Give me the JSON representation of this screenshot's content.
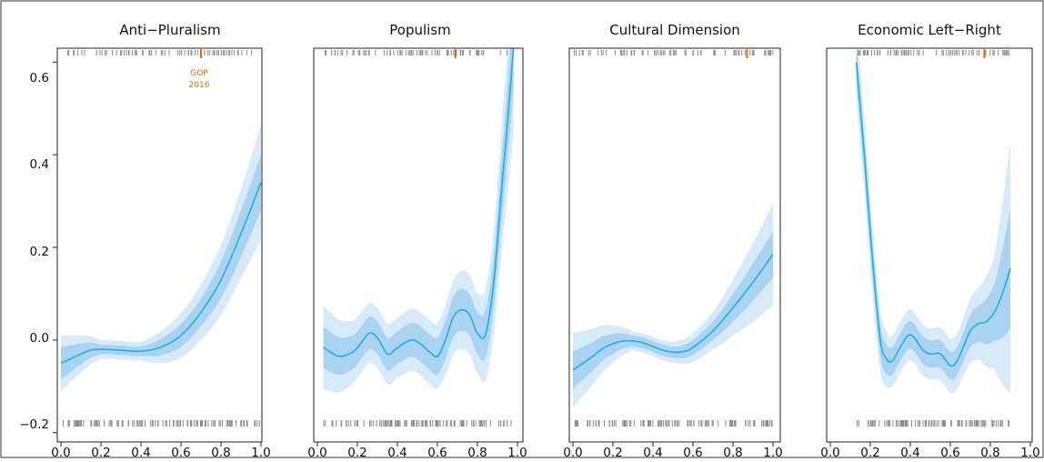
{
  "colors": {
    "line": "#1bb0de",
    "band_outer": "#d7eaf8",
    "band_inner": "#a9d3f0",
    "rug": "#8a8a8a",
    "highlight": "#e0680a",
    "frame": "#222222"
  },
  "annotation": {
    "line1": "GOP",
    "line2": "2016"
  },
  "chart_data": [
    {
      "type": "line",
      "title": "Anti−Pluralism",
      "xlim": [
        0.0,
        1.0
      ],
      "ylim": [
        -0.22,
        0.63
      ],
      "x_ticks": [
        "0.0",
        "0.2",
        "0.4",
        "0.6",
        "0.8",
        "1.0"
      ],
      "y_ticks": [
        "−0.2",
        "0.0",
        "0.2",
        "0.4",
        "0.6"
      ],
      "highlight_x": 0.7,
      "annotation": true,
      "series": [
        {
          "values": [
            [
              0.0,
              -0.05
            ],
            [
              0.05,
              -0.04
            ],
            [
              0.1,
              -0.03
            ],
            [
              0.15,
              -0.022
            ],
            [
              0.2,
              -0.02
            ],
            [
              0.3,
              -0.022
            ],
            [
              0.4,
              -0.024
            ],
            [
              0.5,
              -0.015
            ],
            [
              0.6,
              0.01
            ],
            [
              0.7,
              0.06
            ],
            [
              0.8,
              0.13
            ],
            [
              0.9,
              0.23
            ],
            [
              1.0,
              0.34
            ]
          ]
        }
      ],
      "band_inner": [
        [
          0.0,
          0.035
        ],
        [
          0.2,
          0.01
        ],
        [
          0.4,
          0.01
        ],
        [
          0.5,
          0.018
        ],
        [
          0.6,
          0.025
        ],
        [
          0.7,
          0.03
        ],
        [
          0.8,
          0.04
        ],
        [
          0.9,
          0.05
        ],
        [
          1.0,
          0.06
        ]
      ],
      "band_outer": [
        [
          0.0,
          0.06
        ],
        [
          0.2,
          0.02
        ],
        [
          0.4,
          0.02
        ],
        [
          0.5,
          0.035
        ],
        [
          0.6,
          0.048
        ],
        [
          0.7,
          0.06
        ],
        [
          0.8,
          0.075
        ],
        [
          0.9,
          0.095
        ],
        [
          1.0,
          0.125
        ]
      ]
    },
    {
      "type": "line",
      "title": "Populism",
      "xlim": [
        0.0,
        1.0
      ],
      "ylim": [
        -0.22,
        0.63
      ],
      "x_ticks": [
        "0.0",
        "0.2",
        "0.4",
        "0.6",
        "0.8",
        "1.0"
      ],
      "highlight_x": 0.69,
      "series": [
        {
          "values": [
            [
              0.03,
              -0.015
            ],
            [
              0.08,
              -0.03
            ],
            [
              0.12,
              -0.035
            ],
            [
              0.18,
              -0.025
            ],
            [
              0.22,
              -0.005
            ],
            [
              0.26,
              0.015
            ],
            [
              0.3,
              0.005
            ],
            [
              0.35,
              -0.03
            ],
            [
              0.39,
              -0.02
            ],
            [
              0.44,
              -0.005
            ],
            [
              0.48,
              0.0
            ],
            [
              0.52,
              -0.01
            ],
            [
              0.56,
              -0.025
            ],
            [
              0.6,
              -0.035
            ],
            [
              0.64,
              0.0
            ],
            [
              0.68,
              0.05
            ],
            [
              0.72,
              0.065
            ],
            [
              0.76,
              0.055
            ],
            [
              0.8,
              0.015
            ],
            [
              0.84,
              0.012
            ],
            [
              0.88,
              0.12
            ],
            [
              0.92,
              0.32
            ],
            [
              0.96,
              0.52
            ],
            [
              0.98,
              0.63
            ]
          ]
        }
      ],
      "band_inner": [
        [
          0.03,
          0.045
        ],
        [
          0.2,
          0.035
        ],
        [
          0.4,
          0.035
        ],
        [
          0.6,
          0.04
        ],
        [
          0.72,
          0.045
        ],
        [
          0.8,
          0.045
        ],
        [
          0.9,
          0.06
        ],
        [
          0.98,
          0.09
        ]
      ],
      "band_outer": [
        [
          0.03,
          0.09
        ],
        [
          0.2,
          0.065
        ],
        [
          0.4,
          0.065
        ],
        [
          0.6,
          0.07
        ],
        [
          0.72,
          0.085
        ],
        [
          0.8,
          0.085
        ],
        [
          0.9,
          0.12
        ],
        [
          0.98,
          0.18
        ]
      ]
    },
    {
      "type": "line",
      "title": "Cultural Dimension",
      "xlim": [
        0.0,
        1.0
      ],
      "ylim": [
        -0.22,
        0.63
      ],
      "x_ticks": [
        "0.0",
        "0.2",
        "0.4",
        "0.6",
        "0.8",
        "1.0"
      ],
      "highlight_x": 0.87,
      "series": [
        {
          "values": [
            [
              0.0,
              -0.065
            ],
            [
              0.05,
              -0.05
            ],
            [
              0.1,
              -0.035
            ],
            [
              0.15,
              -0.018
            ],
            [
              0.2,
              -0.008
            ],
            [
              0.25,
              -0.002
            ],
            [
              0.3,
              -0.002
            ],
            [
              0.35,
              -0.006
            ],
            [
              0.4,
              -0.014
            ],
            [
              0.45,
              -0.022
            ],
            [
              0.5,
              -0.026
            ],
            [
              0.55,
              -0.025
            ],
            [
              0.6,
              -0.016
            ],
            [
              0.7,
              0.02
            ],
            [
              0.8,
              0.07
            ],
            [
              0.9,
              0.125
            ],
            [
              1.0,
              0.185
            ]
          ]
        }
      ],
      "band_inner": [
        [
          0.0,
          0.04
        ],
        [
          0.3,
          0.012
        ],
        [
          0.5,
          0.012
        ],
        [
          0.7,
          0.02
        ],
        [
          0.8,
          0.03
        ],
        [
          0.9,
          0.04
        ],
        [
          1.0,
          0.05
        ]
      ],
      "band_outer": [
        [
          0.0,
          0.08
        ],
        [
          0.3,
          0.02
        ],
        [
          0.5,
          0.022
        ],
        [
          0.7,
          0.04
        ],
        [
          0.8,
          0.06
        ],
        [
          0.9,
          0.085
        ],
        [
          1.0,
          0.11
        ]
      ]
    },
    {
      "type": "line",
      "title": "Economic Left−Right",
      "xlim": [
        0.0,
        1.0
      ],
      "ylim": [
        -0.22,
        0.63
      ],
      "x_ticks": [
        "0.0",
        "0.2",
        "0.4",
        "0.6",
        "0.8",
        "1.0"
      ],
      "highlight_x": 0.77,
      "series": [
        {
          "values": [
            [
              0.13,
              0.6
            ],
            [
              0.17,
              0.4
            ],
            [
              0.21,
              0.18
            ],
            [
              0.25,
              0.0
            ],
            [
              0.28,
              -0.04
            ],
            [
              0.31,
              -0.045
            ],
            [
              0.35,
              -0.015
            ],
            [
              0.39,
              0.01
            ],
            [
              0.42,
              0.005
            ],
            [
              0.46,
              -0.02
            ],
            [
              0.5,
              -0.03
            ],
            [
              0.55,
              -0.03
            ],
            [
              0.6,
              -0.055
            ],
            [
              0.63,
              -0.048
            ],
            [
              0.66,
              -0.02
            ],
            [
              0.7,
              0.02
            ],
            [
              0.74,
              0.035
            ],
            [
              0.78,
              0.04
            ],
            [
              0.82,
              0.06
            ],
            [
              0.86,
              0.1
            ],
            [
              0.9,
              0.155
            ]
          ]
        }
      ],
      "band_inner": [
        [
          0.13,
          0.04
        ],
        [
          0.2,
          0.04
        ],
        [
          0.3,
          0.03
        ],
        [
          0.5,
          0.03
        ],
        [
          0.65,
          0.03
        ],
        [
          0.75,
          0.04
        ],
        [
          0.82,
          0.06
        ],
        [
          0.9,
          0.13
        ]
      ],
      "band_outer": [
        [
          0.13,
          0.08
        ],
        [
          0.2,
          0.08
        ],
        [
          0.3,
          0.055
        ],
        [
          0.5,
          0.055
        ],
        [
          0.65,
          0.06
        ],
        [
          0.75,
          0.08
        ],
        [
          0.82,
          0.12
        ],
        [
          0.9,
          0.27
        ]
      ]
    }
  ]
}
